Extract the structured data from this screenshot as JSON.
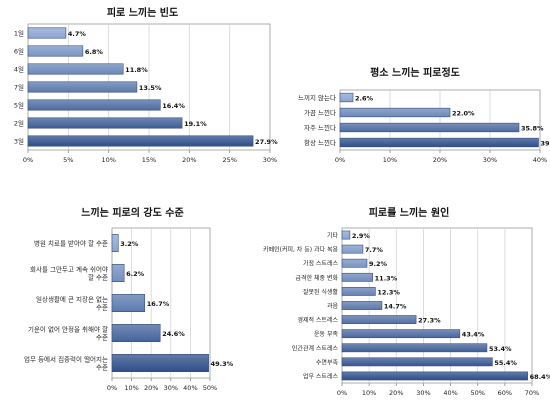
{
  "colors": {
    "dark": "#2e4f8a",
    "light": "#a8c0e8",
    "grid": "#d4d4d4",
    "axis": "#888888",
    "frame": "#9a9a9a"
  },
  "chart_data": [
    {
      "type": "bar",
      "orientation": "horizontal",
      "title": "피로 느끼는 빈도",
      "categories": [
        "1일",
        "6일",
        "4일",
        "7일",
        "5일",
        "2일",
        "3일"
      ],
      "values": [
        4.7,
        6.8,
        11.8,
        13.5,
        16.4,
        19.1,
        27.9
      ],
      "labels": [
        "4.7%",
        "6.8%",
        "11.8%",
        "13.5%",
        "16.4%",
        "19.1%",
        "27.9%"
      ],
      "xlim": [
        0,
        30
      ],
      "xticks": [
        "0%",
        "5%",
        "10%",
        "15%",
        "20%",
        "25%",
        "30%"
      ],
      "grid": true
    },
    {
      "type": "bar",
      "orientation": "horizontal",
      "title": "평소 느끼는 피로정도",
      "categories": [
        "느끼지 않는다",
        "가끔 느낀다",
        "자주 느낀다",
        "항상 느낀다"
      ],
      "values": [
        2.6,
        22.0,
        35.8,
        39.7
      ],
      "labels": [
        "2.6%",
        "22.0%",
        "35.8%",
        "39.7%"
      ],
      "xlim": [
        0,
        40
      ],
      "xticks": [
        "0%",
        "10%",
        "20%",
        "30%",
        "40%"
      ],
      "grid": true
    },
    {
      "type": "bar",
      "orientation": "horizontal",
      "title": "느끼는 피로의 강도 수준",
      "categories": [
        "병원 치료를 받아야 할 수준",
        "회사를 그만두고 계속 쉬어야 할 수준",
        "일상생활에 큰 지장은 없는 수준",
        "기운이 없어 안정을 취해야 할 수준",
        "업무 등에서 집중력이 떨어지는 수준"
      ],
      "values": [
        3.2,
        6.2,
        16.7,
        24.6,
        49.3
      ],
      "labels": [
        "3.2%",
        "6.2%",
        "16.7%",
        "24.6%",
        "49.3%"
      ],
      "xlim": [
        0,
        50
      ],
      "xticks": [
        "0%",
        "10%",
        "20%",
        "30%",
        "40%",
        "50%"
      ],
      "grid": true
    },
    {
      "type": "bar",
      "orientation": "horizontal",
      "title": "피로를 느끼는 원인",
      "categories": [
        "기타",
        "카페인(커피, 차 등) 과다 복용",
        "가정 스트레스",
        "급격한 체중 변화",
        "잘못된 식생활",
        "과음",
        "경제적 스트레스",
        "운동 부족",
        "인간관계 스트레스",
        "수면부족",
        "업무 스트레스"
      ],
      "values": [
        2.9,
        7.7,
        9.2,
        11.3,
        12.3,
        14.7,
        27.3,
        43.4,
        53.4,
        55.4,
        68.4
      ],
      "labels": [
        "2.9%",
        "7.7%",
        "9.2%",
        "11.3%",
        "12.3%",
        "14.7%",
        "27.3%",
        "43.4%",
        "53.4%",
        "55.4%",
        "68.4%"
      ],
      "xlim": [
        0,
        70
      ],
      "xticks": [
        "0%",
        "10%",
        "20%",
        "30%",
        "40%",
        "50%",
        "60%",
        "70%"
      ],
      "grid": true
    }
  ]
}
